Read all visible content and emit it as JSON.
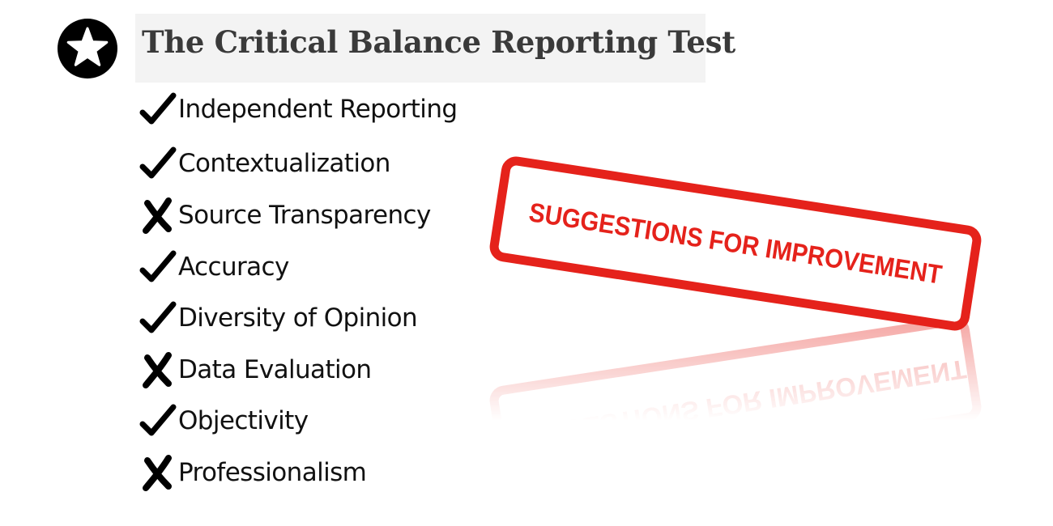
{
  "title": "The Critical Balance Reporting Test",
  "criteria": [
    {
      "label": "Independent Reporting",
      "status": "check"
    },
    {
      "label": "Contextualization",
      "status": "check"
    },
    {
      "label": "Source Transparency",
      "status": "cross"
    },
    {
      "label": "Accuracy",
      "status": "check"
    },
    {
      "label": "Diversity of Opinion",
      "status": "check"
    },
    {
      "label": "Data Evaluation",
      "status": "cross"
    },
    {
      "label": "Objectivity",
      "status": "check"
    },
    {
      "label": "Professionalism",
      "status": "cross"
    }
  ],
  "stamp": {
    "text": "SUGGESTIONS FOR IMPROVEMENT",
    "color": "#e5221b"
  },
  "icons": {
    "badge": "star-icon",
    "pass": "checkmark-icon",
    "fail": "cross-icon"
  },
  "colors": {
    "title_box": "#f3f3f3",
    "title_text": "#3a3a3a",
    "badge": "#000000"
  }
}
